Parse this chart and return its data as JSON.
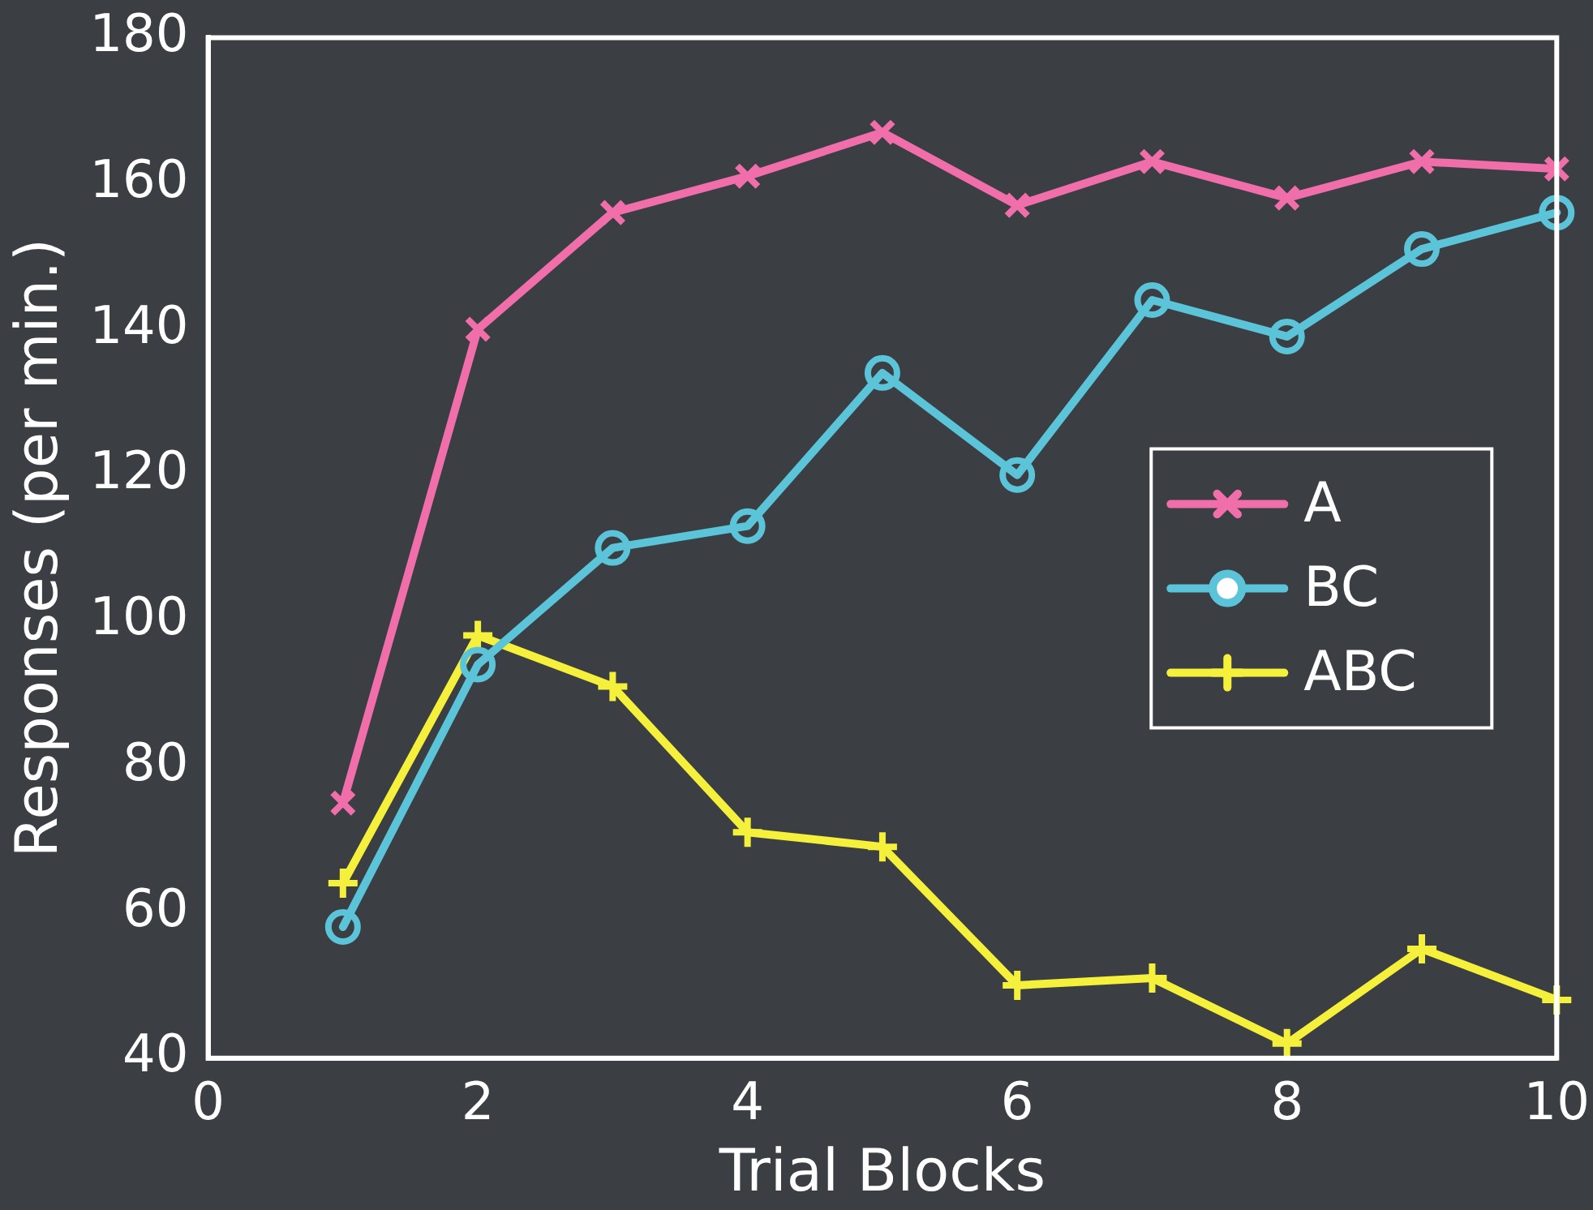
{
  "chart_data": {
    "type": "line",
    "xlabel": "Trial Blocks",
    "ylabel": "Responses (per min.)",
    "x": [
      1,
      2,
      3,
      4,
      5,
      6,
      7,
      8,
      9,
      10
    ],
    "series": [
      {
        "name": "A",
        "color": "#f06eaa",
        "marker": "x",
        "values": [
          75,
          140,
          156,
          161,
          167,
          157,
          163,
          158,
          163,
          162
        ]
      },
      {
        "name": "BC",
        "color": "#5bc4d8",
        "marker": "circle",
        "values": [
          58,
          94,
          110,
          113,
          134,
          120,
          144,
          139,
          151,
          156
        ]
      },
      {
        "name": "ABC",
        "color": "#f5f03c",
        "marker": "cross",
        "values": [
          64,
          98,
          91,
          71,
          69,
          50,
          51,
          42,
          55,
          48
        ]
      }
    ],
    "xlim": [
      0,
      10
    ],
    "xticks": [
      0,
      2,
      4,
      6,
      8,
      10
    ],
    "ylim": [
      40,
      180
    ],
    "yticks": [
      40,
      60,
      80,
      100,
      120,
      140,
      160,
      180
    ],
    "grid": false,
    "legend": "center right",
    "line_style": "solid"
  }
}
